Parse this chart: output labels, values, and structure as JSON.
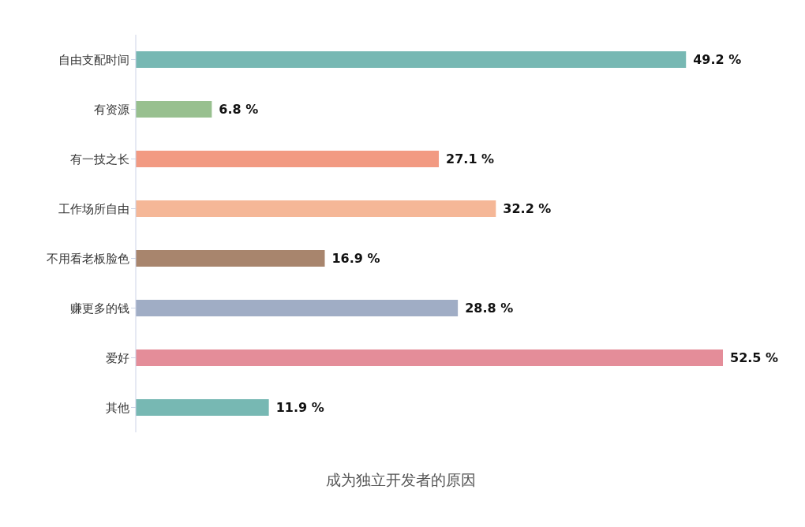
{
  "chart_data": {
    "type": "bar",
    "orientation": "horizontal",
    "title": "成为独立开发者的原因",
    "categories": [
      "自由支配时间",
      "有资源",
      "有一技之长",
      "工作场所自由",
      "不用看老板脸色",
      "赚更多的钱",
      "爱好",
      "其他"
    ],
    "values": [
      49.2,
      6.8,
      27.1,
      32.2,
      16.9,
      28.8,
      52.5,
      11.9
    ],
    "value_labels": [
      "49.2 %",
      "6.8 %",
      "27.1 %",
      "32.2 %",
      "16.9 %",
      "28.8 %",
      "52.5 %",
      "11.9 %"
    ],
    "colors": [
      "#77b8b3",
      "#98c08f",
      "#f29a82",
      "#f5b797",
      "#a8856d",
      "#a0adc5",
      "#e48d99",
      "#77b8b3"
    ],
    "grid": false,
    "legend": false
  }
}
